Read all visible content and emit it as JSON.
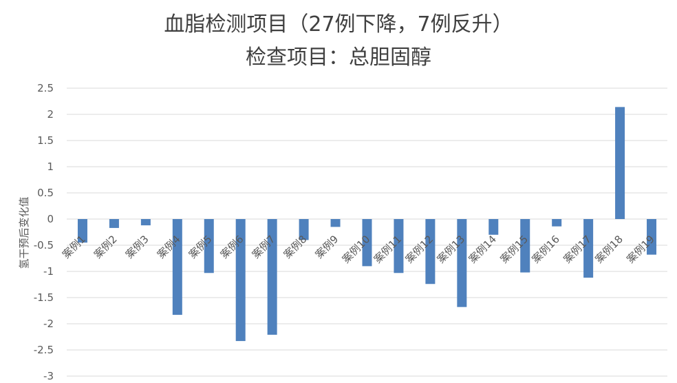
{
  "chart_data": {
    "type": "bar",
    "title": [
      "血脂检测项目（27例下降，7例反升）",
      "检查项目：总胆固醇"
    ],
    "xlabel": "",
    "ylabel": "氢干预后变化值",
    "categories": [
      "案例1",
      "案例2",
      "案例3",
      "案例4",
      "案例5",
      "案例6",
      "案例7",
      "案例8",
      "案例9",
      "案例10",
      "案例11",
      "案例12",
      "案例13",
      "案例14",
      "案例15",
      "案例16",
      "案例17",
      "案例18",
      "案例19"
    ],
    "values": [
      -0.45,
      -0.17,
      -0.12,
      -1.83,
      -1.03,
      -2.33,
      -2.21,
      -0.4,
      -0.15,
      -0.9,
      -1.03,
      -1.24,
      -1.68,
      -0.3,
      -1.02,
      -0.14,
      -1.12,
      2.14,
      -0.68
    ],
    "ylim": [
      -3,
      2.5
    ],
    "yticks": [
      "2.5",
      "2",
      "1.5",
      "1",
      "0.5",
      "0",
      "-0.5",
      "-1",
      "-1.5",
      "-2",
      "-2.5",
      "-3"
    ],
    "ytick_values": [
      2.5,
      2,
      1.5,
      1,
      0.5,
      0,
      -0.5,
      -1,
      -1.5,
      -2,
      -2.5,
      -3
    ],
    "grid": true,
    "legend": "none",
    "bar_color": "#4f81bd",
    "grid_color": "#d9d9d9"
  }
}
